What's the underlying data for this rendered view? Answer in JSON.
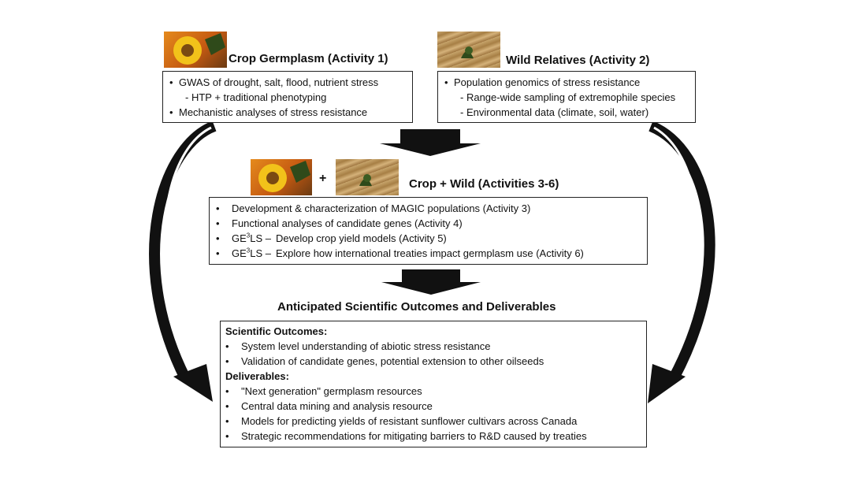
{
  "crop": {
    "title": "Crop Germplasm (Activity 1)",
    "items": [
      {
        "kind": "bullet",
        "text": "GWAS of drought, salt, flood, nutrient stress"
      },
      {
        "kind": "sub",
        "text": "HTP + traditional phenotyping"
      },
      {
        "kind": "bullet",
        "text": "Mechanistic analyses of stress resistance"
      }
    ]
  },
  "wild": {
    "title": "Wild Relatives (Activity 2)",
    "items": [
      {
        "kind": "bullet",
        "text": "Population genomics of stress resistance"
      },
      {
        "kind": "sub",
        "text": "Range-wide sampling of extremophile species"
      },
      {
        "kind": "sub",
        "text": "Environmental data (climate, soil, water)"
      }
    ]
  },
  "combined": {
    "plus": "+",
    "title": "Crop + Wild (Activities 3-6)",
    "items": [
      {
        "pre": "",
        "text": "Development & characterization of MAGIC populations (Activity 3)"
      },
      {
        "pre": "",
        "text": "Functional analyses of candidate genes (Activity 4)"
      },
      {
        "pre": "GE",
        "sup": "3",
        "post": "LS –",
        "text": "Develop crop yield models (Activity 5)"
      },
      {
        "pre": "GE",
        "sup": "3",
        "post": "LS –",
        "text": "Explore how international treaties impact germplasm use (Activity 6)"
      }
    ]
  },
  "outcomes": {
    "title": "Anticipated Scientific Outcomes and Deliverables",
    "scientific_heading": "Scientific Outcomes:",
    "scientific_items": [
      "System level understanding of abiotic stress resistance",
      "Validation of candidate genes, potential extension to other oilseeds"
    ],
    "deliverables_heading": "Deliverables:",
    "deliverables_items": [
      "\"Next generation\" germplasm resources",
      "Central data mining and analysis resource",
      "Models for predicting yields of resistant sunflower cultivars across Canada",
      "Strategic recommendations for mitigating barriers to R&D caused by treaties"
    ]
  },
  "images": {
    "sunflower": "sunflower-photo",
    "sand": "desert-plant-photo"
  }
}
